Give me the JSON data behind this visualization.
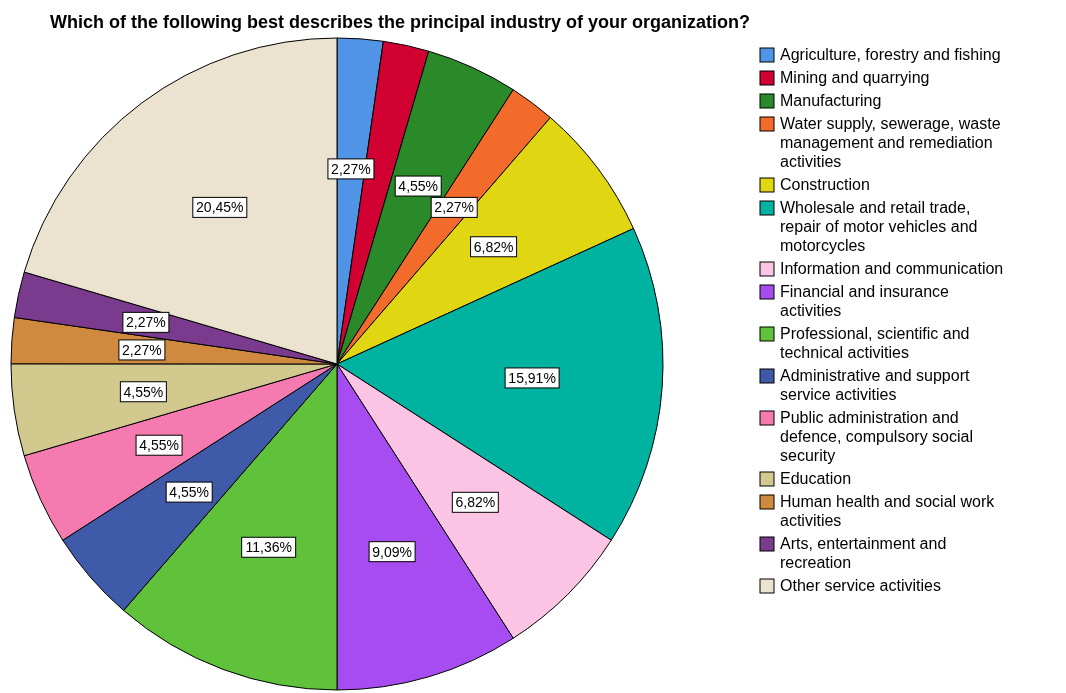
{
  "chart_data": {
    "type": "pie",
    "title": "Which of the following best describes the principal industry of your organization?",
    "categories": [
      "Agriculture, forestry and fishing",
      "Mining and quarrying",
      "Manufacturing",
      "Water supply, sewerage, waste management and remediation activities",
      "Construction",
      "Wholesale and retail trade, repair of motor vehicles and motorcycles",
      "Information and communication",
      "Financial and insurance activities",
      "Professional, scientific and technical activities",
      "Administrative and support service activities",
      "Public administration and defence, compulsory social security",
      "Education",
      "Human health and social work activities",
      "Arts, entertainment and recreation",
      "Other service activities"
    ],
    "values": [
      2.27,
      2.27,
      4.55,
      2.27,
      6.82,
      15.91,
      6.82,
      9.09,
      11.36,
      4.55,
      4.55,
      4.55,
      2.27,
      2.27,
      20.45
    ],
    "value_labels": [
      "2,27%",
      null,
      "4,55%",
      "2,27%",
      "6,82%",
      "15,91%",
      "6,82%",
      "9,09%",
      "11,36%",
      "4,55%",
      "4,55%",
      "4,55%",
      "2,27%",
      "2,27%",
      "20,45%"
    ],
    "colors": [
      "#5094e6",
      "#d10131",
      "#2a8a2a",
      "#f26b2a",
      "#e0d611",
      "#00b2a0",
      "#fcc4e4",
      "#a64cf0",
      "#5fc23a",
      "#3e5aa8",
      "#f47ab0",
      "#d2c98f",
      "#d08a40",
      "#7a3a8e",
      "#ebe3d0"
    ],
    "legend": "right"
  }
}
